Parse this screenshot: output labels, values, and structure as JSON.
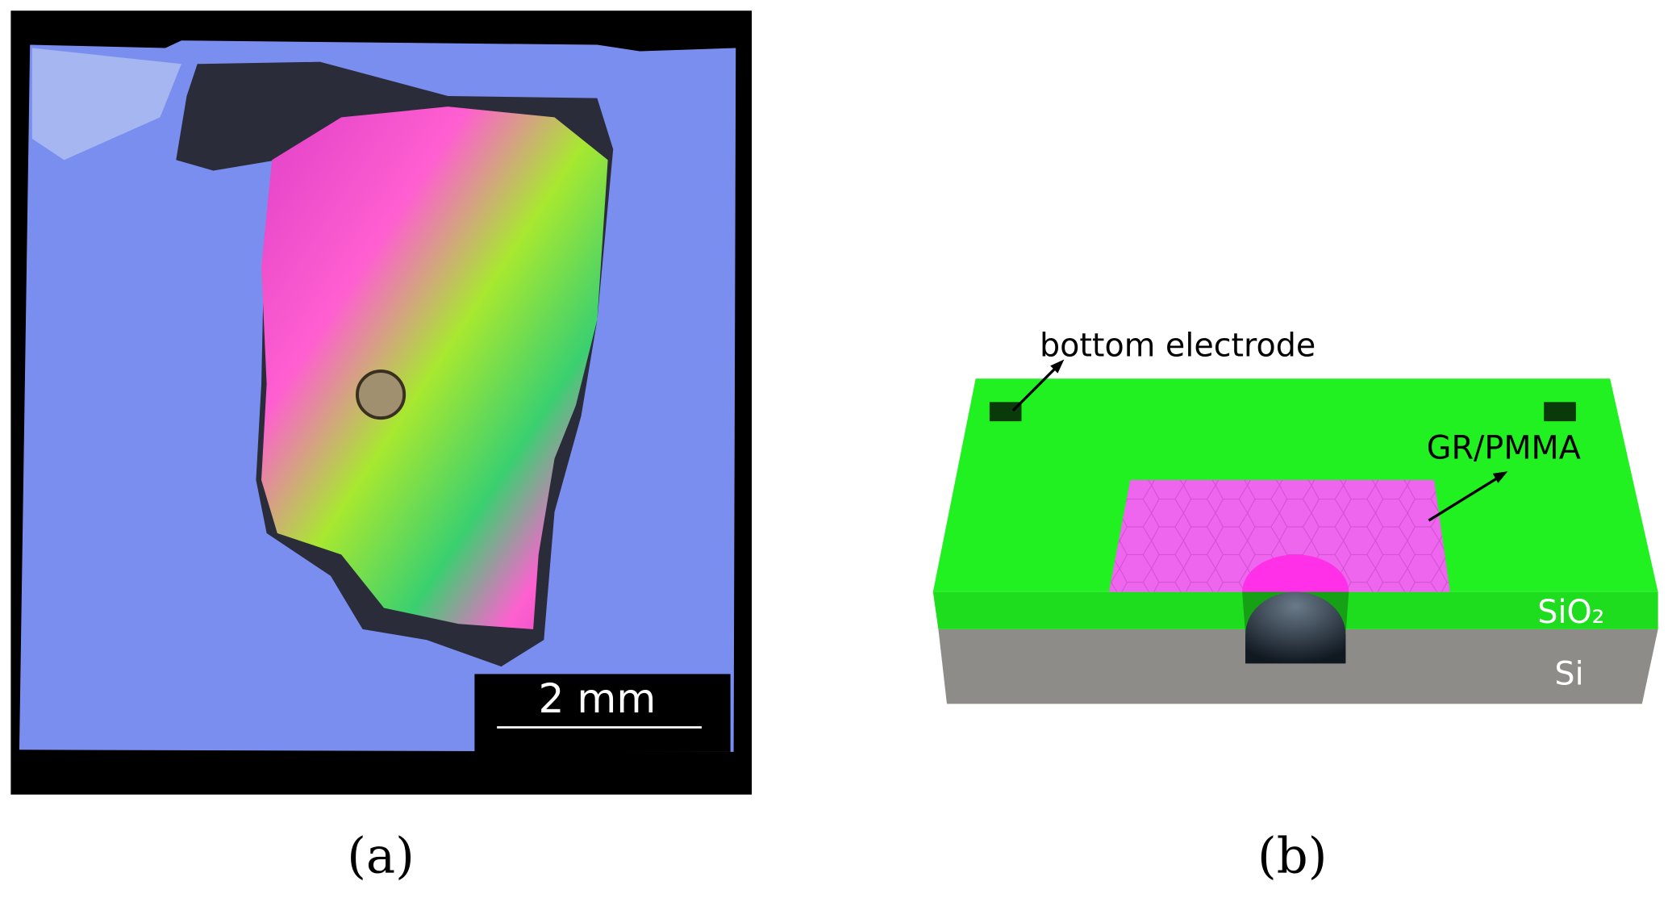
{
  "panels": [
    {
      "label": "(a)",
      "scale_bar": "2 mm"
    },
    {
      "label": "(b)",
      "annotations": [
        "bottom electrode",
        "GR/PMMA"
      ],
      "layers": [
        "SiO₂",
        "Si"
      ]
    }
  ]
}
